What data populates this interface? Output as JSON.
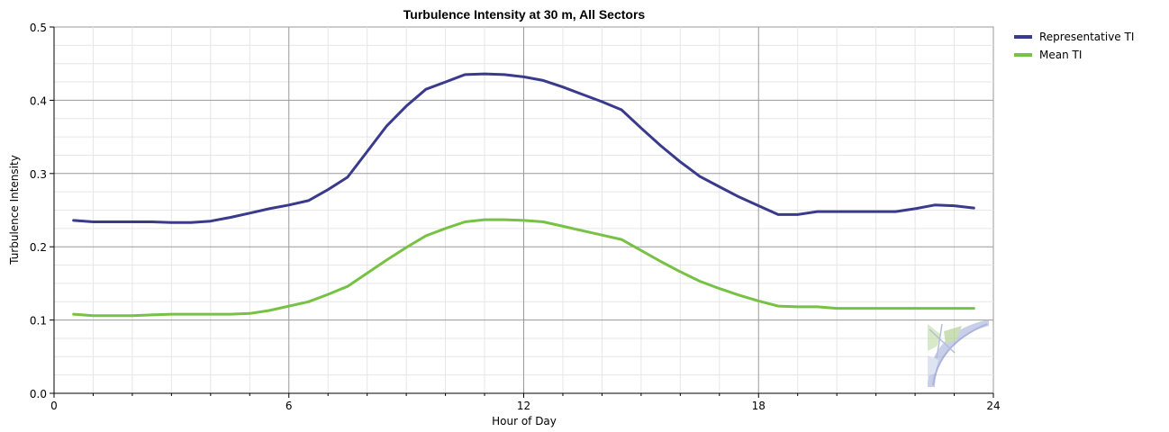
{
  "chart_data": {
    "type": "line",
    "title": "Turbulence Intensity at 30 m, All Sectors",
    "xlabel": "Hour of Day",
    "ylabel": "Turbulence Intensity",
    "xlim": [
      0,
      24
    ],
    "ylim": [
      0.0,
      0.5
    ],
    "x_ticks": [
      "0",
      "6",
      "12",
      "18",
      "24"
    ],
    "y_ticks": [
      "0.0",
      "0.1",
      "0.2",
      "0.3",
      "0.4",
      "0.5"
    ],
    "grid": true,
    "legend_position": "top-right",
    "x": [
      0.5,
      1.0,
      1.5,
      2.0,
      2.5,
      3.0,
      3.5,
      4.0,
      4.5,
      5.0,
      5.5,
      6.0,
      6.5,
      7.0,
      7.5,
      8.0,
      8.5,
      9.0,
      9.5,
      10.0,
      10.5,
      11.0,
      11.5,
      12.0,
      12.5,
      13.0,
      13.5,
      14.0,
      14.5,
      15.0,
      15.5,
      16.0,
      16.5,
      17.0,
      17.5,
      18.0,
      18.5,
      19.0,
      19.5,
      20.0,
      20.5,
      21.0,
      21.5,
      22.0,
      22.5,
      23.0,
      23.5
    ],
    "series": [
      {
        "name": "Representative TI",
        "color": "#3a3a8c",
        "values": [
          0.236,
          0.234,
          0.234,
          0.234,
          0.234,
          0.233,
          0.233,
          0.235,
          0.24,
          0.246,
          0.252,
          0.257,
          0.263,
          0.278,
          0.295,
          0.33,
          0.365,
          0.392,
          0.415,
          0.425,
          0.435,
          0.436,
          0.435,
          0.432,
          0.427,
          0.418,
          0.408,
          0.398,
          0.387,
          0.362,
          0.338,
          0.316,
          0.296,
          0.282,
          0.268,
          0.256,
          0.244,
          0.244,
          0.248,
          0.248,
          0.248,
          0.248,
          0.248,
          0.252,
          0.257,
          0.256,
          0.253
        ]
      },
      {
        "name": "Mean TI",
        "color": "#77c145",
        "values": [
          0.108,
          0.106,
          0.106,
          0.106,
          0.107,
          0.108,
          0.108,
          0.108,
          0.108,
          0.109,
          0.113,
          0.119,
          0.125,
          0.135,
          0.146,
          0.164,
          0.182,
          0.199,
          0.215,
          0.225,
          0.234,
          0.237,
          0.237,
          0.236,
          0.234,
          0.228,
          0.222,
          0.216,
          0.21,
          0.195,
          0.18,
          0.166,
          0.153,
          0.143,
          0.134,
          0.126,
          0.119,
          0.118,
          0.118,
          0.116,
          0.116,
          0.116,
          0.116,
          0.116,
          0.116,
          0.116,
          0.116
        ]
      }
    ]
  }
}
